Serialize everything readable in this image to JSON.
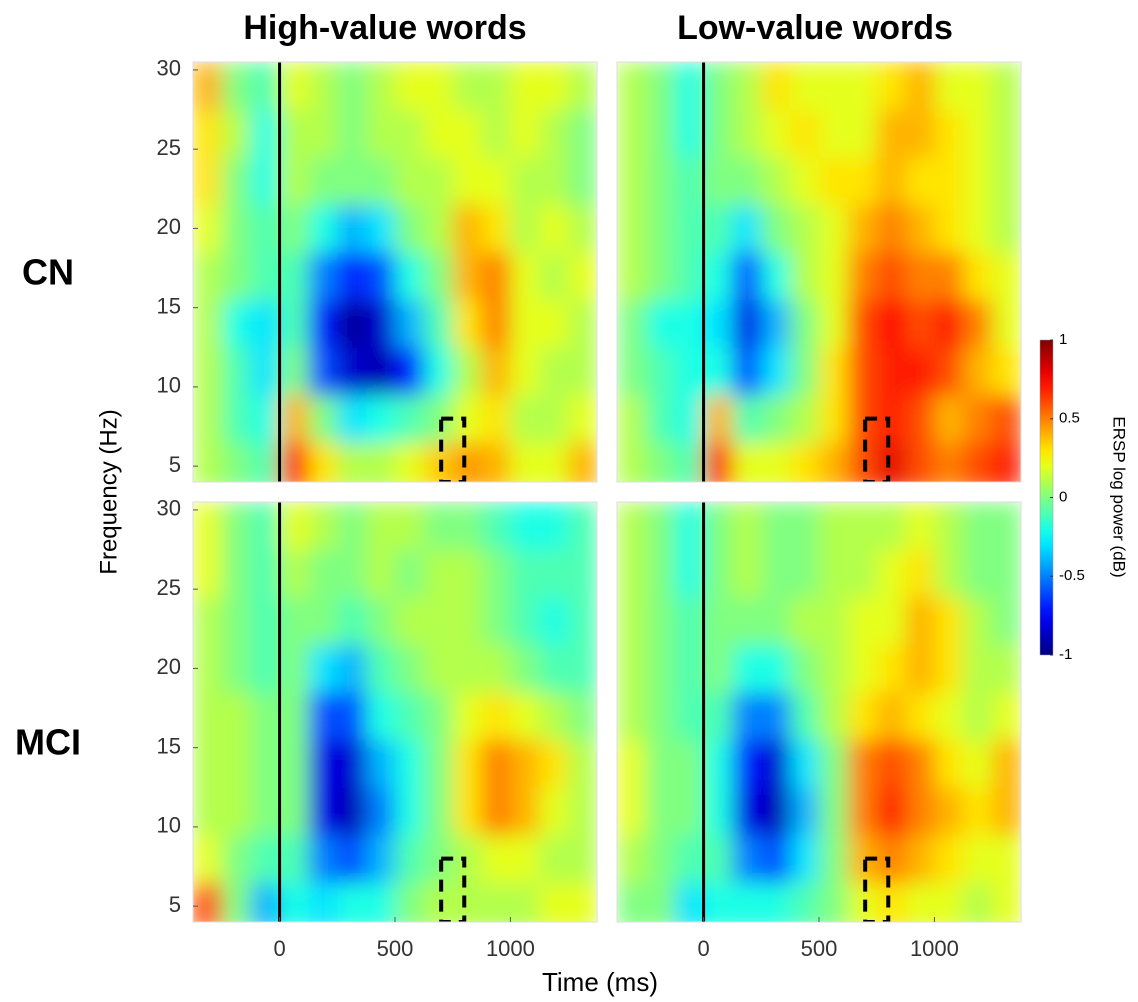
{
  "chart_data": {
    "type": "heatmap",
    "columns": [
      "High-value words",
      "Low-value words"
    ],
    "rows": [
      "CN",
      "MCI"
    ],
    "xlabel": "Time (ms)",
    "ylabel": "Frequency (Hz)",
    "colorbar_label": "ERSP log power (dB)",
    "colormap": "jet",
    "xlim": [
      -375,
      1375
    ],
    "ylim": [
      4,
      30.5
    ],
    "xticks": [
      0,
      500,
      1000
    ],
    "yticks": [
      5,
      10,
      15,
      20,
      25,
      30
    ],
    "clim": [
      -1,
      1
    ],
    "cticks": [
      -1,
      -0.5,
      0,
      0.5,
      1
    ],
    "onset": 0,
    "highlight": {
      "x": [
        700,
        800
      ],
      "y": [
        4,
        8
      ]
    },
    "x": [
      -312.5,
      -187.5,
      -62.5,
      62.5,
      187.5,
      312.5,
      437.5,
      562.5,
      687.5,
      812.5,
      937.5,
      1062.5,
      1187.5,
      1312.5
    ],
    "y": [
      5,
      8,
      11,
      14,
      17,
      20,
      23,
      26,
      29
    ],
    "panels": [
      {
        "row": 0,
        "column": 0,
        "z": [
          [
            0.1,
            0.0,
            -0.1,
            0.7,
            0.3,
            0.1,
            0.1,
            0.2,
            0.35,
            0.45,
            0.4,
            0.2,
            0.2,
            0.4
          ],
          [
            0.1,
            -0.1,
            -0.2,
            0.4,
            0.0,
            -0.3,
            -0.2,
            -0.1,
            0.0,
            0.2,
            0.3,
            0.1,
            0.1,
            0.2
          ],
          [
            0.1,
            -0.1,
            -0.3,
            0.0,
            -0.6,
            -0.85,
            -0.9,
            -0.7,
            -0.2,
            0.1,
            0.4,
            0.2,
            0.1,
            0.1
          ],
          [
            0.1,
            -0.2,
            -0.3,
            -0.1,
            -0.7,
            -0.95,
            -0.85,
            -0.4,
            -0.1,
            0.3,
            0.5,
            0.2,
            0.2,
            0.1
          ],
          [
            0.1,
            0.0,
            -0.1,
            -0.1,
            -0.5,
            -0.7,
            -0.6,
            -0.2,
            0.0,
            0.4,
            0.5,
            0.2,
            0.1,
            0.2
          ],
          [
            0.2,
            0.0,
            -0.1,
            0.0,
            -0.2,
            -0.4,
            -0.3,
            0.0,
            0.1,
            0.4,
            0.3,
            0.1,
            0.2,
            0.1
          ],
          [
            0.3,
            0.0,
            -0.2,
            0.1,
            0.0,
            0.0,
            0.0,
            0.1,
            0.1,
            0.2,
            0.2,
            0.1,
            0.1,
            0.0
          ],
          [
            0.3,
            0.1,
            -0.2,
            0.1,
            0.1,
            0.0,
            0.1,
            0.1,
            0.2,
            0.2,
            0.1,
            0.2,
            0.1,
            0.0
          ],
          [
            0.4,
            0.0,
            -0.1,
            0.2,
            0.1,
            0.0,
            0.1,
            0.2,
            0.2,
            0.1,
            0.1,
            0.2,
            0.2,
            0.1
          ]
        ]
      },
      {
        "row": 0,
        "column": 1,
        "z": [
          [
            0.1,
            0.0,
            -0.1,
            0.7,
            0.2,
            0.2,
            0.3,
            0.4,
            0.6,
            0.8,
            0.6,
            0.5,
            0.6,
            0.7
          ],
          [
            0.1,
            -0.1,
            -0.2,
            0.4,
            -0.1,
            0.0,
            0.1,
            0.3,
            0.6,
            0.7,
            0.6,
            0.4,
            0.5,
            0.6
          ],
          [
            0.0,
            -0.1,
            -0.2,
            -0.2,
            -0.6,
            -0.3,
            0.0,
            0.3,
            0.6,
            0.7,
            0.7,
            0.6,
            0.4,
            0.3
          ],
          [
            0.0,
            -0.2,
            -0.2,
            -0.3,
            -0.8,
            -0.4,
            0.0,
            0.2,
            0.6,
            0.75,
            0.6,
            0.7,
            0.5,
            0.2
          ],
          [
            0.1,
            0.0,
            -0.1,
            -0.2,
            -0.6,
            -0.2,
            0.1,
            0.2,
            0.5,
            0.6,
            0.5,
            0.5,
            0.3,
            0.2
          ],
          [
            0.1,
            0.0,
            -0.1,
            -0.1,
            -0.3,
            0.0,
            0.1,
            0.2,
            0.4,
            0.5,
            0.4,
            0.3,
            0.2,
            0.1
          ],
          [
            0.1,
            0.0,
            -0.1,
            0.0,
            0.0,
            0.1,
            0.2,
            0.3,
            0.3,
            0.4,
            0.3,
            0.3,
            0.2,
            0.1
          ],
          [
            0.1,
            0.0,
            -0.2,
            0.0,
            0.1,
            0.2,
            0.3,
            0.2,
            0.2,
            0.4,
            0.4,
            0.3,
            0.2,
            0.1
          ],
          [
            0.1,
            0.0,
            -0.2,
            0.0,
            0.1,
            0.3,
            0.2,
            0.2,
            0.2,
            0.3,
            0.4,
            0.2,
            0.2,
            0.1
          ]
        ]
      },
      {
        "row": 1,
        "column": 0,
        "z": [
          [
            0.6,
            0.0,
            -0.4,
            -0.2,
            -0.3,
            -0.2,
            -0.2,
            0.0,
            0.1,
            0.1,
            0.1,
            0.1,
            0.2,
            0.2
          ],
          [
            0.2,
            0.0,
            -0.1,
            -0.1,
            -0.5,
            -0.6,
            -0.4,
            -0.1,
            0.0,
            0.1,
            0.2,
            0.2,
            0.1,
            0.1
          ],
          [
            0.1,
            0.1,
            0.0,
            0.0,
            -0.8,
            -0.9,
            -0.5,
            -0.2,
            0.0,
            0.3,
            0.5,
            0.4,
            0.2,
            0.1
          ],
          [
            0.1,
            0.1,
            0.0,
            0.0,
            -0.8,
            -0.85,
            -0.4,
            -0.2,
            0.0,
            0.3,
            0.5,
            0.4,
            0.3,
            0.1
          ],
          [
            0.1,
            0.1,
            0.0,
            0.0,
            -0.6,
            -0.6,
            -0.2,
            -0.1,
            0.0,
            0.2,
            0.3,
            0.2,
            0.1,
            0.0
          ],
          [
            0.1,
            0.0,
            -0.1,
            0.0,
            -0.3,
            -0.4,
            -0.1,
            0.0,
            0.1,
            0.1,
            0.1,
            0.0,
            -0.1,
            -0.1
          ],
          [
            0.1,
            0.0,
            -0.1,
            0.0,
            0.0,
            -0.1,
            0.0,
            0.1,
            0.1,
            0.1,
            0.0,
            -0.1,
            -0.2,
            -0.1
          ],
          [
            0.2,
            0.0,
            -0.1,
            0.1,
            0.0,
            0.0,
            0.1,
            0.0,
            0.1,
            0.1,
            0.0,
            -0.1,
            -0.1,
            -0.1
          ],
          [
            0.2,
            0.0,
            -0.1,
            0.2,
            0.1,
            0.0,
            0.1,
            0.1,
            0.0,
            0.0,
            -0.1,
            -0.2,
            -0.2,
            -0.1
          ]
        ]
      },
      {
        "row": 1,
        "column": 1,
        "z": [
          [
            0.0,
            0.0,
            -0.3,
            -0.2,
            -0.2,
            -0.2,
            -0.1,
            0.0,
            0.2,
            0.3,
            0.2,
            0.2,
            0.1,
            0.2
          ],
          [
            0.1,
            0.0,
            -0.1,
            -0.1,
            -0.5,
            -0.6,
            -0.3,
            0.0,
            0.4,
            0.5,
            0.4,
            0.3,
            0.2,
            0.2
          ],
          [
            0.2,
            0.0,
            0.0,
            -0.2,
            -0.8,
            -0.9,
            -0.4,
            0.0,
            0.5,
            0.7,
            0.5,
            0.4,
            0.3,
            0.4
          ],
          [
            0.2,
            0.0,
            0.0,
            -0.2,
            -0.7,
            -0.85,
            -0.3,
            0.0,
            0.5,
            0.6,
            0.5,
            0.3,
            0.2,
            0.4
          ],
          [
            0.1,
            0.0,
            -0.1,
            -0.1,
            -0.5,
            -0.5,
            -0.1,
            0.1,
            0.3,
            0.4,
            0.3,
            0.2,
            0.1,
            0.2
          ],
          [
            0.1,
            0.0,
            -0.1,
            0.0,
            -0.2,
            -0.2,
            0.0,
            0.1,
            0.2,
            0.3,
            0.4,
            0.3,
            0.1,
            0.1
          ],
          [
            0.1,
            0.0,
            -0.1,
            0.0,
            0.0,
            0.0,
            0.1,
            0.1,
            0.2,
            0.2,
            0.4,
            0.3,
            0.1,
            0.0
          ],
          [
            0.1,
            0.0,
            -0.2,
            0.0,
            0.1,
            0.0,
            0.0,
            0.1,
            0.1,
            0.2,
            0.3,
            0.1,
            0.0,
            0.0
          ],
          [
            0.1,
            0.0,
            -0.2,
            0.0,
            0.1,
            0.0,
            0.0,
            0.1,
            0.1,
            0.1,
            0.2,
            0.1,
            0.0,
            0.0
          ]
        ]
      }
    ]
  }
}
